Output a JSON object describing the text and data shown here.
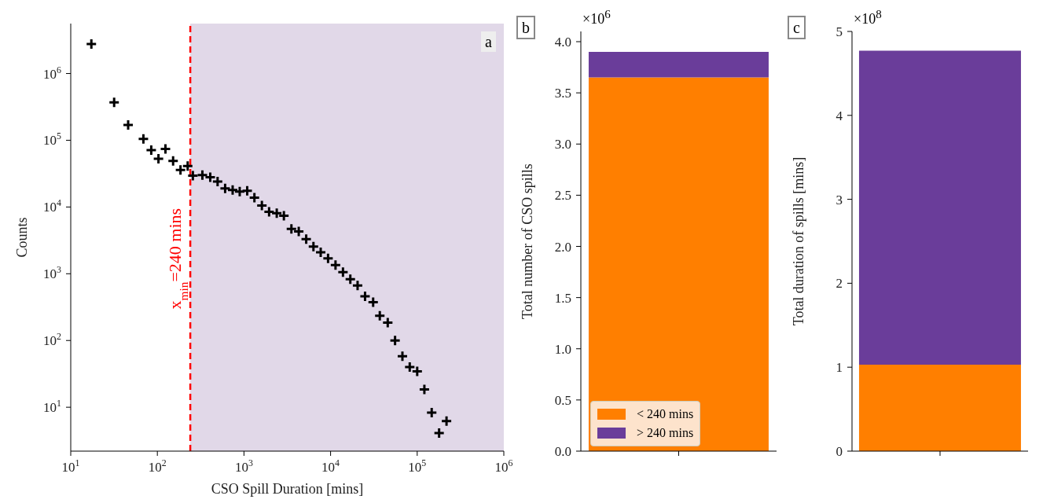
{
  "chart_data": [
    {
      "type": "scatter",
      "xlabel": "CSO Spill Duration [mins]",
      "ylabel": "Counts",
      "log": "xy",
      "marker": "cross",
      "x": [
        17.3,
        31.7,
        46,
        69,
        85,
        103,
        124,
        152,
        185,
        224,
        257,
        331,
        408,
        496,
        606,
        740,
        893,
        1090,
        1320,
        1610,
        1950,
        2390,
        2890,
        3530,
        4290,
        5230,
        6340,
        7690,
        9350,
        11400,
        13900,
        16900,
        20500,
        25000,
        31000,
        37000,
        45700,
        55500,
        67500,
        82000,
        100000,
        121000,
        147000,
        179000,
        218000
      ],
      "series": [
        {
          "color": "#000000",
          "values": [
            2770000,
            370000,
            170000,
            105000,
            71000,
            53000,
            74000,
            49000,
            36000,
            41000,
            29500,
            30000,
            28000,
            24000,
            19000,
            18000,
            17000,
            17500,
            13800,
            10500,
            8500,
            8100,
            7400,
            4700,
            4300,
            3300,
            2560,
            2100,
            1700,
            1350,
            1060,
            830,
            665,
            460,
            374,
            235,
            185,
            100,
            58,
            40,
            34.5,
            18.5,
            8.3,
            4.1,
            6.2
          ]
        }
      ],
      "xlim": [
        10,
        1000000
      ],
      "xticks": [
        {
          "value": 10,
          "label": "10$^{1}$"
        },
        {
          "value": 100,
          "label": "10$^{2}$"
        },
        {
          "value": 1000,
          "label": "10$^{3}$"
        },
        {
          "value": 10000,
          "label": "10$^{4}$"
        },
        {
          "value": 100000,
          "label": "10$^{5}$"
        },
        {
          "value": 1000000,
          "label": "10$^{6}$"
        }
      ],
      "ylim": [
        2.2,
        5600000
      ],
      "yticks": [
        {
          "value": 10,
          "label": "10$^{1}$"
        },
        {
          "value": 100,
          "label": "10$^{2}$"
        },
        {
          "value": 1000,
          "label": "10$^{3}$"
        },
        {
          "value": 10000,
          "label": "10$^{4}$"
        },
        {
          "value": 100000,
          "label": "10$^{5}$"
        },
        {
          "value": 1000000,
          "label": "10$^{6}$"
        }
      ],
      "bands": [
        {
          "axis": "x",
          "from": 240,
          "to": 1000000,
          "color": "#e1d8e8"
        }
      ],
      "ref_lines": [
        {
          "axis": "x",
          "value": 240,
          "label": "x$_{min}$=240 mins",
          "color": "#ff0000",
          "line_style": "dashed"
        }
      ],
      "annotations": [
        "a"
      ]
    },
    {
      "type": "bar",
      "stacked": true,
      "ylabel": "Total number of CSO spills",
      "categories": [
        null
      ],
      "legend": "bottom",
      "series": [
        {
          "name": "< 240 mins",
          "color": "#ff7f00",
          "values": [
            3.65
          ]
        },
        {
          "name": "> 240 mins",
          "color": "#6a3d9a",
          "values": [
            0.25
          ]
        }
      ],
      "ylim": [
        0,
        4.1
      ],
      "yticks": [
        {
          "value": 0,
          "label": "0.0"
        },
        0.5,
        {
          "value": 1,
          "label": "1.0"
        },
        1.5,
        {
          "value": 2,
          "label": "2.0"
        },
        2.5,
        {
          "value": 3,
          "label": "3.0"
        },
        3.5,
        {
          "value": 4,
          "label": "4.0"
        }
      ],
      "annotations": [
        "b",
        "×10$^{6}$"
      ]
    },
    {
      "type": "bar",
      "stacked": true,
      "ylabel": "Total duration of spills [mins]",
      "categories": [
        null
      ],
      "series": [
        {
          "color": "#ff7f00",
          "values": [
            1.03
          ]
        },
        {
          "color": "#6a3d9a",
          "values": [
            3.74
          ]
        }
      ],
      "ylim": [
        0,
        5
      ],
      "yticks": [
        0,
        1,
        2,
        3,
        4,
        5
      ],
      "annotations": [
        "c",
        "×10$^{8}$"
      ]
    }
  ]
}
